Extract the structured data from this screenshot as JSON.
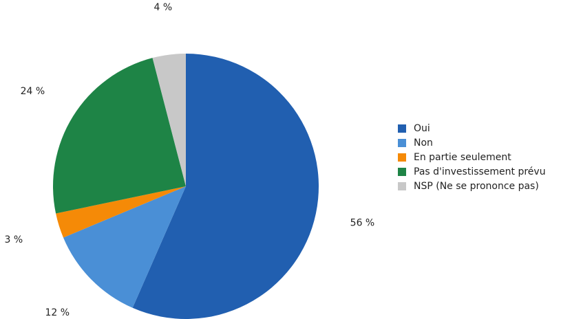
{
  "chart_data": {
    "type": "pie",
    "categories": [
      "Oui",
      "Non",
      "En partie seulement",
      "Pas d'investissement prévu",
      "NSP (Ne se prononce pas)"
    ],
    "values": [
      56,
      12,
      3,
      24,
      4
    ],
    "value_labels": [
      "56 %",
      "12 %",
      "3 %",
      "24 %",
      "4 %"
    ],
    "colors": [
      "#215fb0",
      "#4a8fd6",
      "#f58a07",
      "#1e8446",
      "#c8c8c8"
    ],
    "legend": "right"
  }
}
